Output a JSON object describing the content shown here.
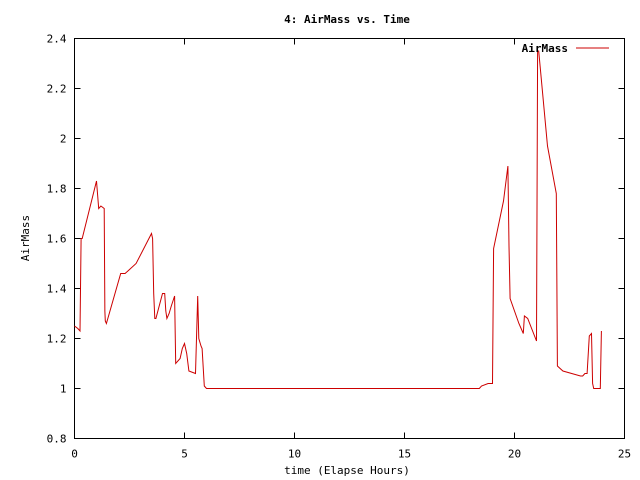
{
  "chart_data": {
    "type": "line",
    "title": "4: AirMass vs. Time",
    "xlabel": "time (Elapse Hours)",
    "ylabel": "AirMass",
    "xlim": [
      0,
      25
    ],
    "ylim": [
      0.8,
      2.4
    ],
    "x_ticks": [
      0,
      5,
      10,
      15,
      20,
      25
    ],
    "x_tick_labels": [
      "0",
      "5",
      "10",
      "15",
      "20",
      "25"
    ],
    "y_ticks": [
      0.8,
      1,
      1.2,
      1.4,
      1.6,
      1.8,
      2,
      2.2,
      2.4
    ],
    "y_tick_labels": [
      "0.8",
      "1",
      "1.2",
      "1.4",
      "1.6",
      "1.8",
      "2",
      "2.2",
      "2.4"
    ],
    "grid": false,
    "legend_position": "top-right",
    "series": [
      {
        "name": "AirMass",
        "color": "#cc0000",
        "x": [
          0.0,
          0.15,
          0.25,
          0.3,
          0.35,
          1.0,
          1.1,
          1.2,
          1.35,
          1.38,
          1.4,
          1.45,
          2.1,
          2.3,
          2.8,
          3.5,
          3.55,
          3.6,
          3.65,
          3.7,
          4.0,
          4.1,
          4.15,
          4.2,
          4.3,
          4.4,
          4.55,
          4.6,
          4.8,
          4.9,
          5.0,
          5.1,
          5.2,
          5.5,
          5.6,
          5.65,
          5.75,
          5.8,
          5.9,
          6.0,
          18.2,
          18.4,
          18.5,
          18.8,
          19.0,
          19.05,
          19.5,
          19.7,
          19.75,
          19.8,
          20.2,
          20.4,
          20.45,
          20.6,
          21.0,
          21.05,
          21.1,
          21.5,
          21.9,
          21.95,
          22.2,
          23.0,
          23.1,
          23.2,
          23.3,
          23.4,
          23.5,
          23.55,
          23.6,
          23.7,
          23.8,
          23.9,
          23.95
        ],
        "y": [
          1.25,
          1.24,
          1.23,
          1.6,
          1.6,
          1.83,
          1.72,
          1.73,
          1.72,
          1.31,
          1.27,
          1.26,
          1.46,
          1.46,
          1.5,
          1.62,
          1.6,
          1.38,
          1.28,
          1.28,
          1.38,
          1.38,
          1.31,
          1.28,
          1.3,
          1.33,
          1.37,
          1.1,
          1.12,
          1.16,
          1.18,
          1.14,
          1.07,
          1.06,
          1.37,
          1.2,
          1.17,
          1.16,
          1.01,
          1.0,
          1.0,
          1.0,
          1.01,
          1.02,
          1.02,
          1.56,
          1.75,
          1.89,
          1.57,
          1.36,
          1.26,
          1.22,
          1.29,
          1.28,
          1.19,
          2.35,
          2.35,
          1.97,
          1.78,
          1.09,
          1.07,
          1.05,
          1.05,
          1.06,
          1.06,
          1.21,
          1.22,
          1.02,
          1.0,
          1.0,
          1.0,
          1.0,
          1.23
        ]
      }
    ]
  }
}
